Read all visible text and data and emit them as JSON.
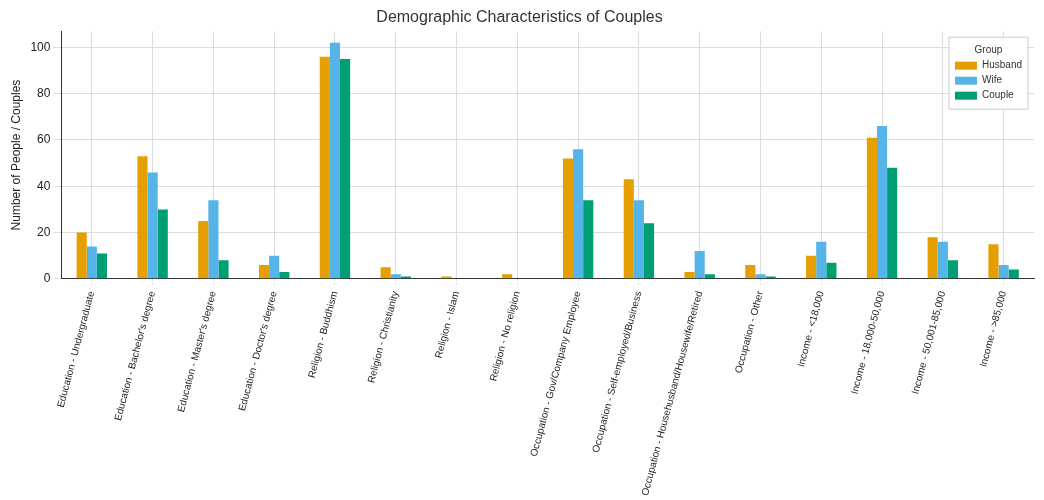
{
  "chart_data": {
    "type": "bar",
    "title": "Demographic Characteristics of Couples",
    "ylabel": "Number of People / Couples",
    "legend_title": "Group",
    "categories": [
      "Education - Undergraduate",
      "Education - Bachelor's degree",
      "Education - Master's degree",
      "Education - Doctor's degree",
      "Religion - Buddhism",
      "Religion - Christianity",
      "Religion - Islam",
      "Religion - No religion",
      "Occupation - Gov/Company Employee",
      "Occupation - Self-employed/Business",
      "Occupation - Househusband/Housewife/Retired",
      "Occupation - Other",
      "Income - <18,000",
      "Income - 18,000-50,000",
      "Income - 50,001-85,000",
      "Income - >85,000"
    ],
    "series": [
      {
        "name": "Husband",
        "color": "#e69f00",
        "values": [
          20,
          53,
          25,
          6,
          96,
          5,
          1,
          2,
          52,
          43,
          3,
          6,
          10,
          61,
          18,
          15
        ]
      },
      {
        "name": "Wife",
        "color": "#56b4e9",
        "values": [
          14,
          46,
          34,
          10,
          102,
          2,
          0,
          0,
          56,
          34,
          12,
          2,
          16,
          66,
          16,
          6
        ]
      },
      {
        "name": "Couple",
        "color": "#009e73",
        "values": [
          11,
          30,
          8,
          3,
          95,
          1,
          0,
          0,
          34,
          24,
          2,
          1,
          7,
          48,
          8,
          4
        ]
      }
    ],
    "ylim": [
      0,
      107
    ],
    "yticks": [
      0,
      20,
      40,
      60,
      80,
      100
    ],
    "grid": true,
    "legend": "top right"
  }
}
